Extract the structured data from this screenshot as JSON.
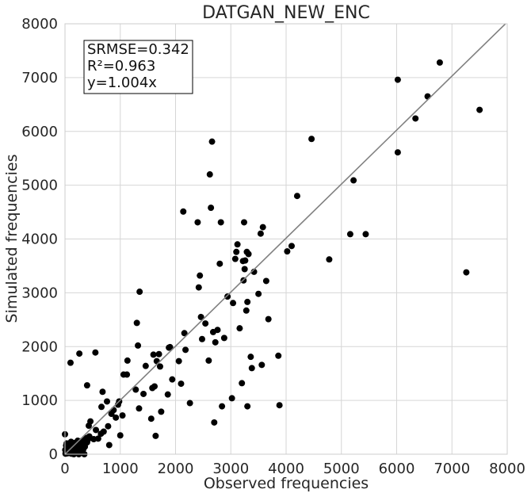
{
  "chart_data": {
    "type": "scatter",
    "title": "DATGAN_NEW_ENC",
    "xlabel": "Observed frequencies",
    "ylabel": "Simulated frequencies",
    "xlim": [
      0,
      8000
    ],
    "ylim": [
      0,
      8000
    ],
    "xticks": [
      0,
      1000,
      2000,
      3000,
      4000,
      5000,
      6000,
      7000,
      8000
    ],
    "yticks": [
      0,
      1000,
      2000,
      3000,
      4000,
      5000,
      6000,
      7000,
      8000
    ],
    "grid": true,
    "annotation": {
      "lines": [
        "SRMSE=0.342",
        "R²=0.963",
        "y=1.004x"
      ],
      "placement": "top-left"
    },
    "fit_line": {
      "slope": 1.004,
      "color": "#808080"
    },
    "marker_color": "#000000",
    "points": [
      [
        10,
        10
      ],
      [
        20,
        30
      ],
      [
        35,
        15
      ],
      [
        50,
        60
      ],
      [
        60,
        20
      ],
      [
        80,
        90
      ],
      [
        90,
        40
      ],
      [
        100,
        120
      ],
      [
        120,
        70
      ],
      [
        140,
        100
      ],
      [
        150,
        160
      ],
      [
        170,
        60
      ],
      [
        190,
        140
      ],
      [
        200,
        30
      ],
      [
        220,
        200
      ],
      [
        240,
        110
      ],
      [
        260,
        180
      ],
      [
        280,
        240
      ],
      [
        300,
        50
      ],
      [
        320,
        210
      ],
      [
        340,
        260
      ],
      [
        360,
        140
      ],
      [
        380,
        300
      ],
      [
        400,
        220
      ],
      [
        420,
        280
      ],
      [
        440,
        330
      ],
      [
        0,
        370
      ],
      [
        30,
        200
      ],
      [
        70,
        180
      ],
      [
        110,
        230
      ],
      [
        160,
        0
      ],
      [
        250,
        0
      ],
      [
        350,
        0
      ],
      [
        40,
        120
      ],
      [
        130,
        40
      ],
      [
        180,
        210
      ],
      [
        230,
        250
      ],
      [
        270,
        120
      ],
      [
        310,
        170
      ],
      [
        330,
        90
      ],
      [
        20,
        160
      ],
      [
        5,
        80
      ],
      [
        15,
        40
      ],
      [
        45,
        90
      ],
      [
        75,
        30
      ],
      [
        95,
        170
      ],
      [
        115,
        10
      ],
      [
        145,
        190
      ],
      [
        165,
        120
      ],
      [
        195,
        80
      ],
      [
        100,
        1700
      ],
      [
        260,
        1870
      ],
      [
        400,
        1280
      ],
      [
        550,
        1890
      ],
      [
        430,
        530
      ],
      [
        460,
        610
      ],
      [
        520,
        280
      ],
      [
        560,
        450
      ],
      [
        600,
        290
      ],
      [
        650,
        380
      ],
      [
        660,
        880
      ],
      [
        680,
        1160
      ],
      [
        700,
        420
      ],
      [
        760,
        980
      ],
      [
        780,
        520
      ],
      [
        800,
        170
      ],
      [
        840,
        750
      ],
      [
        880,
        820
      ],
      [
        920,
        680
      ],
      [
        960,
        920
      ],
      [
        980,
        980
      ],
      [
        1000,
        350
      ],
      [
        1040,
        720
      ],
      [
        1060,
        1480
      ],
      [
        1120,
        1480
      ],
      [
        1130,
        1740
      ],
      [
        1280,
        1200
      ],
      [
        1300,
        2440
      ],
      [
        1320,
        2020
      ],
      [
        1350,
        3020
      ],
      [
        1340,
        850
      ],
      [
        1420,
        1120
      ],
      [
        1460,
        1640
      ],
      [
        1560,
        660
      ],
      [
        1580,
        1230
      ],
      [
        1600,
        1850
      ],
      [
        1620,
        1260
      ],
      [
        1640,
        340
      ],
      [
        1660,
        1730
      ],
      [
        1700,
        1860
      ],
      [
        1720,
        1630
      ],
      [
        1740,
        790
      ],
      [
        1860,
        1110
      ],
      [
        1880,
        1980
      ],
      [
        1900,
        1990
      ],
      [
        1940,
        1390
      ],
      [
        2060,
        1730
      ],
      [
        2100,
        1310
      ],
      [
        2140,
        4510
      ],
      [
        2160,
        2250
      ],
      [
        2180,
        1940
      ],
      [
        2260,
        950
      ],
      [
        2400,
        4310
      ],
      [
        2420,
        3100
      ],
      [
        2440,
        3320
      ],
      [
        2460,
        2550
      ],
      [
        2480,
        2140
      ],
      [
        2540,
        2430
      ],
      [
        2600,
        1740
      ],
      [
        2620,
        5200
      ],
      [
        2640,
        4580
      ],
      [
        2660,
        5810
      ],
      [
        2680,
        2270
      ],
      [
        2700,
        590
      ],
      [
        2720,
        2080
      ],
      [
        2760,
        2310
      ],
      [
        2800,
        3540
      ],
      [
        2820,
        4310
      ],
      [
        2840,
        890
      ],
      [
        2880,
        2160
      ],
      [
        2940,
        2930
      ],
      [
        3020,
        1040
      ],
      [
        3040,
        2810
      ],
      [
        3080,
        3630
      ],
      [
        3100,
        3760
      ],
      [
        3120,
        3900
      ],
      [
        3160,
        2340
      ],
      [
        3200,
        1320
      ],
      [
        3220,
        3590
      ],
      [
        3230,
        3230
      ],
      [
        3240,
        4310
      ],
      [
        3250,
        3440
      ],
      [
        3260,
        3600
      ],
      [
        3280,
        2670
      ],
      [
        3290,
        3760
      ],
      [
        3300,
        2830
      ],
      [
        3300,
        890
      ],
      [
        3320,
        3720
      ],
      [
        3360,
        1810
      ],
      [
        3380,
        1600
      ],
      [
        3420,
        3390
      ],
      [
        3500,
        2980
      ],
      [
        3540,
        4100
      ],
      [
        3560,
        1660
      ],
      [
        3580,
        4220
      ],
      [
        3640,
        3220
      ],
      [
        3680,
        2510
      ],
      [
        3860,
        1830
      ],
      [
        3880,
        910
      ],
      [
        4020,
        3770
      ],
      [
        4100,
        3870
      ],
      [
        4200,
        4800
      ],
      [
        4460,
        5860
      ],
      [
        4780,
        3620
      ],
      [
        5160,
        4090
      ],
      [
        5220,
        5090
      ],
      [
        5440,
        4090
      ],
      [
        6020,
        6960
      ],
      [
        6020,
        5610
      ],
      [
        6340,
        6240
      ],
      [
        6560,
        6650
      ],
      [
        6780,
        7280
      ],
      [
        7260,
        3380
      ],
      [
        7500,
        6400
      ]
    ]
  }
}
